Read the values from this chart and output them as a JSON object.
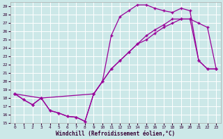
{
  "xlabel": "Windchill (Refroidissement éolien,°C)",
  "bg_color": "#cce8e8",
  "grid_color": "#b8d8d8",
  "line_color": "#990099",
  "xlim": [
    0,
    23
  ],
  "ylim": [
    15,
    29
  ],
  "xticks": [
    0,
    1,
    2,
    3,
    4,
    5,
    6,
    7,
    8,
    9,
    10,
    11,
    12,
    13,
    14,
    15,
    16,
    17,
    18,
    19,
    20,
    21,
    22,
    23
  ],
  "yticks": [
    15,
    16,
    17,
    18,
    19,
    20,
    21,
    22,
    23,
    24,
    25,
    26,
    27,
    28,
    29
  ],
  "line1_x": [
    0,
    1,
    2,
    3,
    4,
    5,
    6,
    7,
    8,
    9,
    10,
    11,
    12,
    13,
    14,
    15,
    16,
    17,
    18,
    19,
    20,
    21,
    22,
    23
  ],
  "line1_y": [
    18.5,
    17.8,
    17.2,
    18.0,
    16.5,
    16.2,
    15.8,
    15.7,
    15.2,
    18.5,
    20.0,
    25.5,
    27.8,
    28.5,
    29.2,
    29.2,
    28.8,
    28.5,
    28.3,
    28.8,
    28.5,
    22.5,
    21.5,
    21.5
  ],
  "line2_x": [
    0,
    1,
    2,
    3,
    4,
    5,
    6,
    7,
    8,
    9,
    10,
    11,
    12,
    13,
    14,
    15,
    16,
    17,
    18,
    19,
    20,
    21,
    22,
    23
  ],
  "line2_y": [
    18.5,
    17.8,
    17.2,
    18.0,
    16.5,
    16.2,
    15.8,
    15.7,
    15.2,
    18.5,
    20.0,
    21.5,
    22.5,
    23.5,
    24.5,
    25.5,
    26.2,
    26.8,
    27.5,
    27.5,
    27.5,
    22.5,
    21.5,
    21.5
  ],
  "line3_x": [
    0,
    3,
    9,
    11,
    12,
    13,
    14,
    15,
    16,
    17,
    18,
    19,
    20,
    21,
    22,
    23
  ],
  "line3_y": [
    18.5,
    18.0,
    18.5,
    21.5,
    22.5,
    23.5,
    24.5,
    25.0,
    25.8,
    26.5,
    27.0,
    27.5,
    27.5,
    27.0,
    26.5,
    21.5
  ]
}
